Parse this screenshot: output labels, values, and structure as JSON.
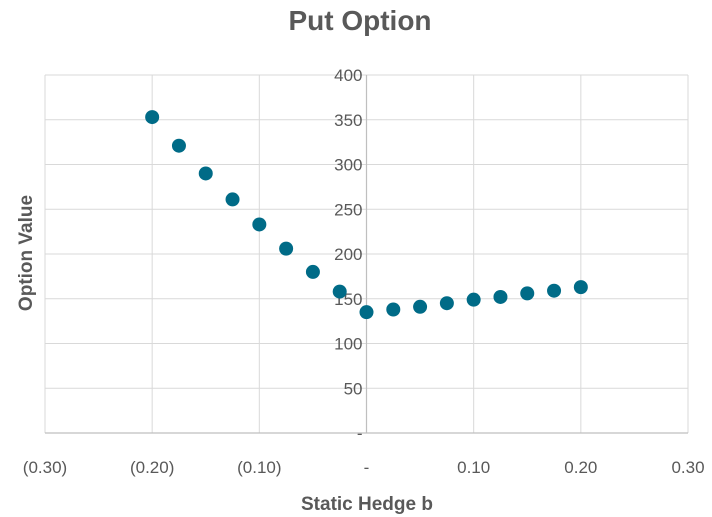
{
  "chart_data": {
    "type": "scatter",
    "title": "Put Option",
    "xlabel": "Static Hedge b",
    "ylabel": "Option Value",
    "xlim": [
      -0.3,
      0.3
    ],
    "ylim": [
      0,
      400
    ],
    "x_ticks": [
      -0.3,
      -0.2,
      -0.1,
      0,
      0.1,
      0.2,
      0.3
    ],
    "x_tick_labels": [
      "(0.30)",
      "(0.20)",
      "(0.10)",
      "-",
      "0.10",
      "0.20",
      "0.30"
    ],
    "y_ticks": [
      0,
      50,
      100,
      150,
      200,
      250,
      300,
      350,
      400
    ],
    "y_tick_labels": [
      "-",
      "50",
      "100",
      "150",
      "200",
      "250",
      "300",
      "350",
      "400"
    ],
    "grid": true,
    "legend": "none",
    "series": [
      {
        "color": "#006b87",
        "x": [
          -0.2,
          -0.175,
          -0.15,
          -0.125,
          -0.1,
          -0.075,
          -0.05,
          -0.025,
          0.0,
          0.025,
          0.05,
          0.075,
          0.1,
          0.125,
          0.15,
          0.175,
          0.2
        ],
        "y": [
          353,
          321,
          290,
          261,
          233,
          206,
          180,
          158,
          135,
          138,
          141,
          145,
          149,
          152,
          156,
          159,
          163
        ]
      }
    ]
  },
  "colors": {
    "marker": "#006b87",
    "grid": "#d9d9d9",
    "axis": "#bfbfbf",
    "text": "#595959"
  }
}
